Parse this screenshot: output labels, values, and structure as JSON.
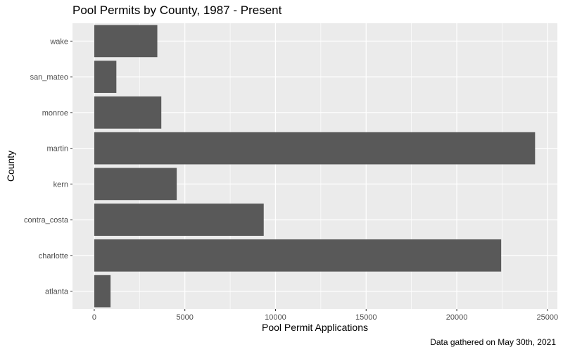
{
  "chart_data": {
    "type": "bar",
    "orientation": "horizontal",
    "title": "Pool Permits by County, 1987 - Present",
    "caption": "Data gathered on May 30th, 2021",
    "xlabel": "Pool Permit Applications",
    "ylabel": "County",
    "categories": [
      "atlanta",
      "charlotte",
      "contra_costa",
      "kern",
      "martin",
      "monroe",
      "san_mateo",
      "wake"
    ],
    "values": [
      900,
      22450,
      9350,
      4550,
      24320,
      3700,
      1220,
      3480
    ],
    "xlim": [
      -1200,
      25550
    ],
    "x_ticks": [
      0,
      5000,
      10000,
      15000,
      20000,
      25000
    ],
    "grid": true,
    "bar_color": "#595959",
    "panel_background": "#ebebeb",
    "grid_color": "#ffffff"
  }
}
